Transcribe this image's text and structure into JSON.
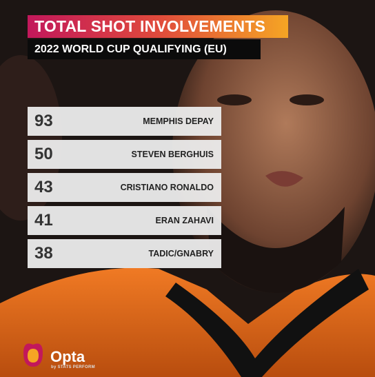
{
  "header": {
    "title": "TOTAL SHOT INVOLVEMENTS",
    "subtitle": "2022 WORLD CUP QUALIFYING (EU)"
  },
  "table": {
    "rows": [
      [
        93,
        "MEMPHIS DEPAY"
      ],
      [
        50,
        "STEVEN BERGHUIS"
      ],
      [
        43,
        "CRISTIANO RONALDO"
      ],
      [
        41,
        "ERAN ZAHAVI"
      ],
      [
        38,
        "TADIC/GNABRY"
      ]
    ]
  },
  "footer": {
    "brand": "Opta",
    "byline": "by STATS PERFORM"
  }
}
